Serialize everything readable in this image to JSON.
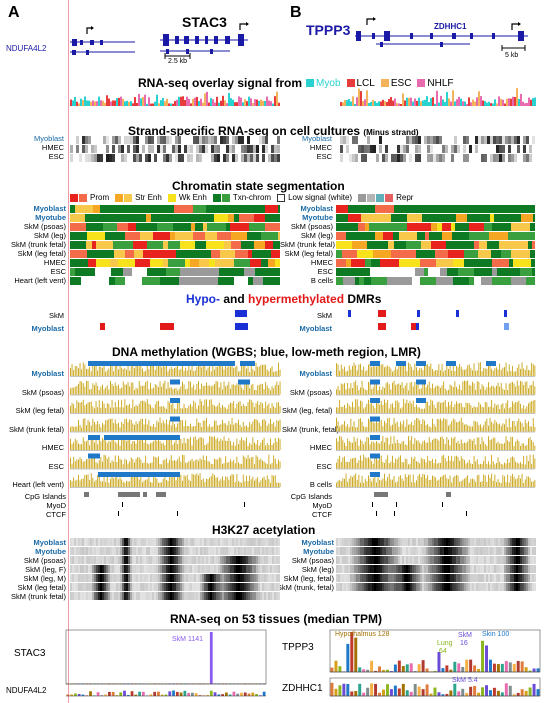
{
  "panels": {
    "a": "A",
    "b": "B"
  },
  "genes": {
    "a_left": "NDUFA4L2",
    "a_main": "STAC3",
    "a_scale": "2.5 kb",
    "b_main": "TPPP3",
    "b_right": "ZDHHC1",
    "b_scale": "5 kb"
  },
  "rnaseq_overlay": {
    "title": "RNA-seq overlay signal from",
    "legend": [
      {
        "label": "Myob",
        "color": "#2ad1d1"
      },
      {
        "label": "LCL",
        "color": "#e63c3c"
      },
      {
        "label": "ESC",
        "color": "#f2b35a"
      },
      {
        "label": "NHLF",
        "color": "#e86bb0"
      }
    ]
  },
  "strand": {
    "title": "Strand-specific RNA-seq on cell cultures",
    "subtitle": "(Minus strand)",
    "rows": [
      "Myoblast",
      "HMEC",
      "ESC"
    ]
  },
  "chromatin": {
    "title": "Chromatin state segmentation",
    "legend": [
      {
        "label": "Prom",
        "colors": [
          "#e8231d",
          "#f46b4a"
        ]
      },
      {
        "label": "Str Enh",
        "colors": [
          "#f5a623",
          "#f7c84a"
        ]
      },
      {
        "label": "Wk Enh",
        "colors": [
          "#f7e21b"
        ]
      },
      {
        "label": "Txn-chrom",
        "colors": [
          "#0e7a23",
          "#3aa03f"
        ]
      },
      {
        "label": "Low signal (white)",
        "colors": [
          "#ffffff"
        ]
      },
      {
        "label": "Repr",
        "colors": [
          "#9a9a9a",
          "#b5b5b5",
          "#5fb0b8",
          "#e56060"
        ]
      }
    ],
    "rows_a": [
      "Myoblast",
      "Myotube",
      "SkM (psoas)",
      "SkM (leg)",
      "SkM (trunk fetal)",
      "SkM (leg fetal)",
      "HMEC",
      "ESC",
      "Heart (left vent)"
    ],
    "rows_b": [
      "Myoblast",
      "Myotube",
      "SkM (psoas)",
      "SkM (leg)",
      "SkM (trunk fetal)",
      "SkM (leg fetal)",
      "HMEC",
      "ESC",
      "B cells"
    ]
  },
  "dmr": {
    "title_hypo": "Hypo-",
    "title_and": " and ",
    "title_hyper": "hypermethylated",
    "title_end": " DMRs",
    "rows": [
      "SkM",
      "Myoblast"
    ]
  },
  "wgbs": {
    "title": "DNA methylation (WGBS; blue, low-meth region, LMR)",
    "rows_a": [
      "Myoblast",
      "SkM (psoas)",
      "SkM (leg fetal)",
      "SkM (trunk fetal)",
      "HMEC",
      "ESC",
      "Heart (left vent)"
    ],
    "rows_b": [
      "Myoblast",
      "SkM (psoas)",
      "SkM (leg, fetal)",
      "SkM (trunk, fetal)",
      "HMEC",
      "ESC",
      "B cells"
    ],
    "extra": [
      "CpG Islands",
      "MyoD",
      "CTCF"
    ]
  },
  "h3k27": {
    "title": "H3K27 acetylation",
    "rows_a": [
      "Myoblast",
      "Myotube",
      "SkM (psoas)",
      "SkM (leg, F)",
      "SkM (leg, M)",
      "SkM (leg fetal)",
      "SkM (trunk fetal)"
    ],
    "rows_b": [
      "Myoblast",
      "Myotube",
      "SkM (psoas)",
      "SkM (leg)",
      "SkM (leg, fetal)",
      "SkM (trunk, fetal)"
    ]
  },
  "tissues": {
    "title": "RNA-seq on 53 tissues (median TPM)",
    "stac3": "STAC3",
    "stac3_peak": "SkM 1141",
    "ndufa4l2": "NDUFA4L2",
    "tppp3": "TPPP3",
    "tppp3_hypo": "Hypothalmus 128",
    "tppp3_lung": "Lung",
    "tppp3_lung_val": "64",
    "tppp3_skm": "SkM",
    "tppp3_skm_val": "16",
    "tppp3_skin": "Skin 100",
    "zdhhc1": "ZDHHC1",
    "zdhhc1_skm": "SkM 5.4"
  },
  "colors": {
    "blue_label": "#1a6aa6",
    "gene_blue": "#1a1aa6",
    "meth_gold": "#c9a314",
    "lmr_blue": "#1f78c8",
    "dmr_hypo": "#1b2fd6",
    "dmr_hyper": "#e31a1a",
    "hypo_title": "#1b2fd6",
    "hyper_title": "#e31a1a",
    "stac3_peak": "#8a5cf0"
  }
}
